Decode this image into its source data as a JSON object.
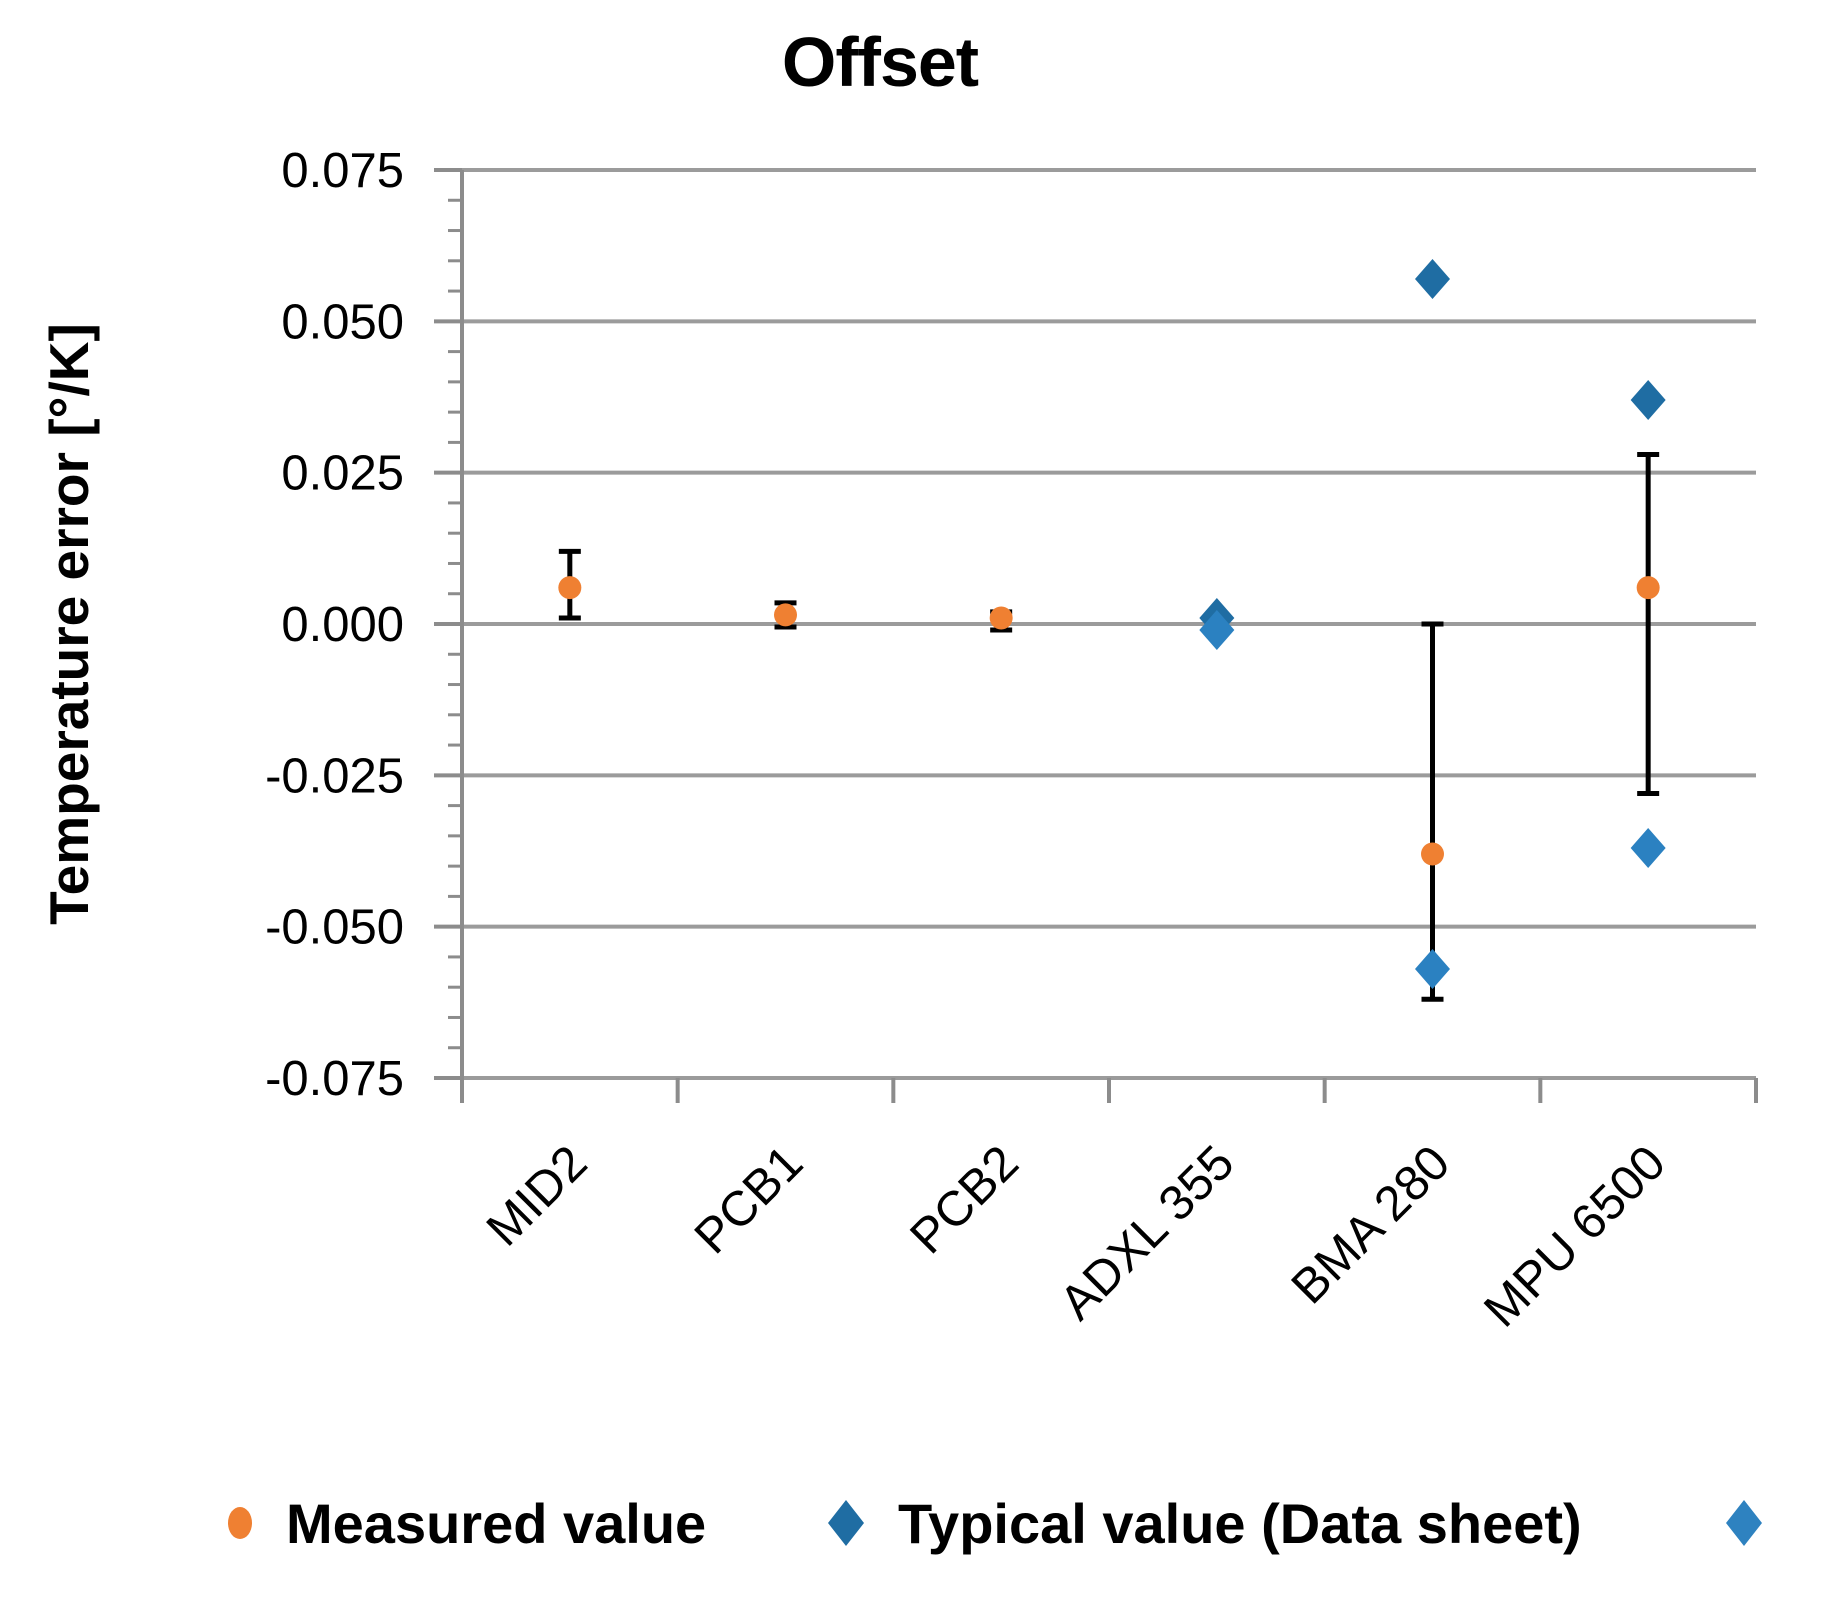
{
  "title": "Offset",
  "chart_data": {
    "type": "scatter",
    "title": "Offset",
    "ylabel": "Temperature error [°/K]",
    "xlabel": "",
    "ylim": [
      -0.075,
      0.075
    ],
    "ytick_step": 0.025,
    "yminor_tick_step": 0.005,
    "ytick_labels": [
      "0.075",
      "0.050",
      "0.025",
      "0.000",
      "-0.025",
      "-0.050",
      "-0.075"
    ],
    "grid": "horizontal-major",
    "legend_position": "bottom",
    "categories": [
      "MID2",
      "PCB1",
      "PCB2",
      "ADXL 355",
      "BMA 280",
      "MPU 6500"
    ],
    "series": [
      {
        "name": "Measured value",
        "marker": "circle",
        "color": "#EF8032",
        "values": [
          0.006,
          0.0015,
          0.001,
          null,
          -0.038,
          0.006
        ],
        "error_high": [
          0.012,
          0.0035,
          0.002,
          null,
          0.0,
          0.028
        ],
        "error_low": [
          0.001,
          -0.0005,
          -0.001,
          null,
          -0.062,
          -0.028
        ]
      },
      {
        "name": "Typical value (Data sheet)",
        "marker": "diamond",
        "color": "#1F6DA3",
        "values": [
          null,
          null,
          null,
          0.001,
          0.057,
          0.037
        ]
      },
      {
        "name": "",
        "marker": "diamond",
        "color": "#2B81C1",
        "values": [
          null,
          null,
          null,
          -0.001,
          -0.057,
          -0.037
        ]
      }
    ]
  },
  "legend": {
    "items": [
      {
        "label": "Measured value",
        "marker": "circle",
        "color": "#EF8032"
      },
      {
        "label": "Typical value (Data sheet)",
        "marker": "diamond",
        "color": "#1F6DA3"
      },
      {
        "label": "",
        "marker": "diamond",
        "color": "#2E82C0"
      }
    ]
  },
  "style": {
    "gridline_color": "#9B9B9B",
    "axis_color": "#8C8C8C",
    "error_bar_color": "#000000",
    "text_color": "#000000"
  }
}
